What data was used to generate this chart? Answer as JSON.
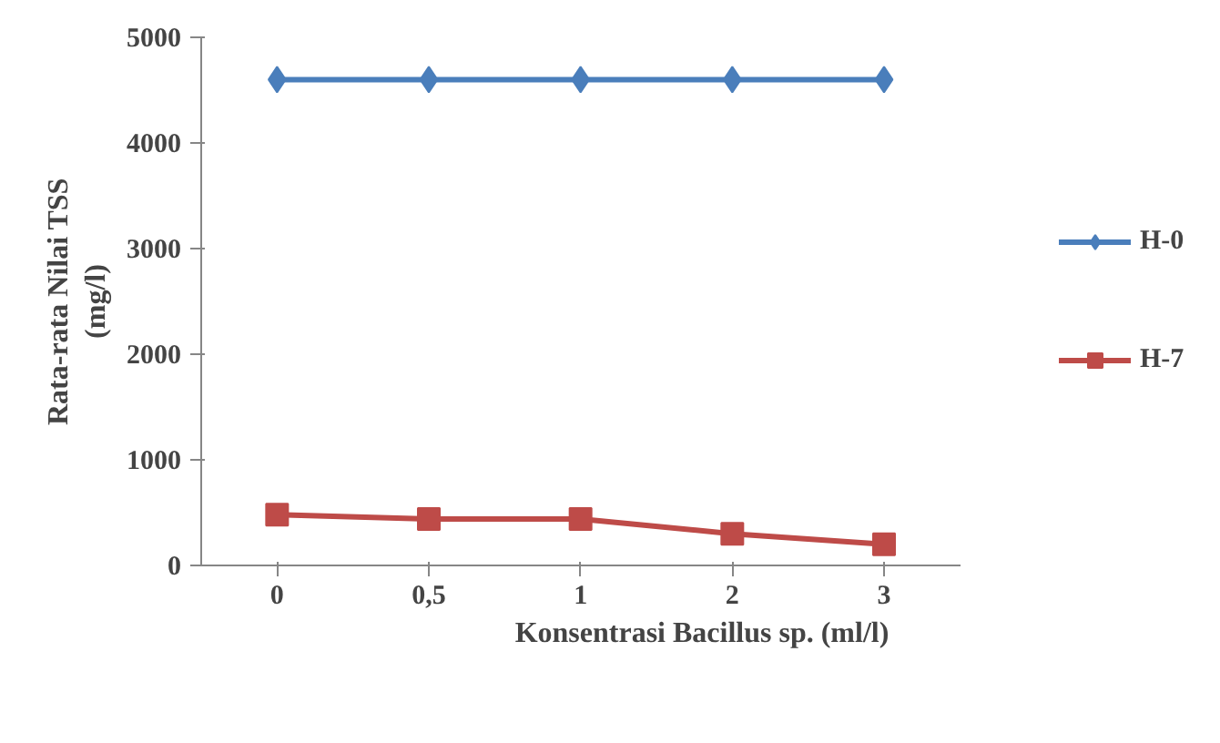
{
  "chart_data": {
    "type": "line",
    "xlabel": "Konsentrasi Bacillus sp. (ml/l)",
    "ylabel": "Rata-rata Nilai TSS\n(mg/l)",
    "categories": [
      "0",
      "0,5",
      "1",
      "2",
      "3"
    ],
    "series": [
      {
        "name": "H-0",
        "color": "#4a7ebb",
        "values": [
          4600,
          4600,
          4600,
          4600,
          4600
        ],
        "marker": "diamond"
      },
      {
        "name": "H-7",
        "color": "#be4b48",
        "values": [
          480,
          440,
          440,
          300,
          200
        ],
        "marker": "square"
      }
    ],
    "ylim": [
      0,
      5000
    ],
    "yticks": [
      0,
      1000,
      2000,
      3000,
      4000,
      5000
    ],
    "grid": false,
    "legend": "right",
    "line_style": "solid"
  }
}
